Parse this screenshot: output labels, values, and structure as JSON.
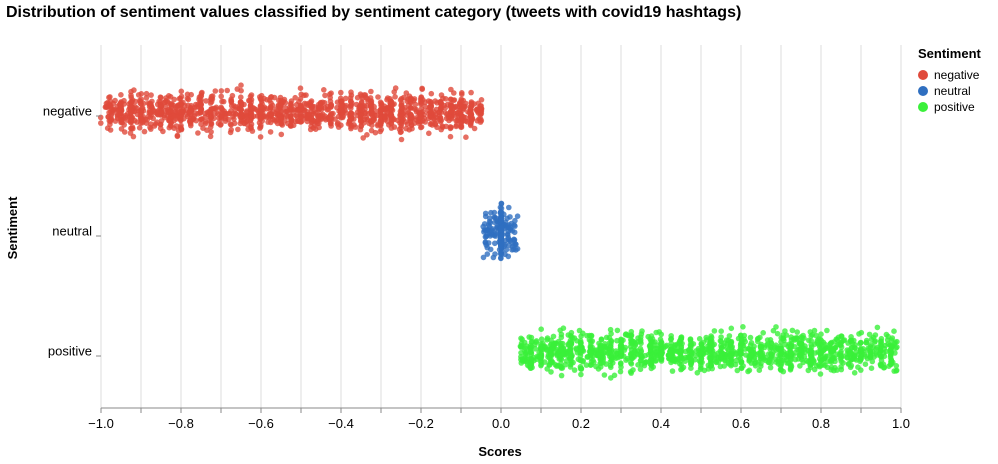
{
  "chart_data": {
    "type": "scatter",
    "title": "Distribution of sentiment values classified by sentiment category (tweets with covid19 hashtags)",
    "xlabel": "Scores",
    "ylabel": "Sentiment",
    "xlim": [
      -1.0,
      1.0
    ],
    "x_ticks": [
      "−1.0",
      "−0.8",
      "−0.6",
      "−0.4",
      "−0.2",
      "0.0",
      "0.2",
      "0.4",
      "0.6",
      "0.8",
      "1.0"
    ],
    "categories": [
      "negative",
      "neutral",
      "positive"
    ],
    "grid": "vertical",
    "legend": {
      "title": "Sentiment",
      "placement": "right"
    },
    "series": [
      {
        "name": "negative",
        "color": "#e04a3b",
        "x_range": [
          -0.99,
          -0.05
        ],
        "point_count": 1400
      },
      {
        "name": "neutral",
        "color": "#2f6fc0",
        "x_range": [
          -0.05,
          0.05
        ],
        "point_count": 260
      },
      {
        "name": "positive",
        "color": "#3af03a",
        "x_range": [
          0.05,
          0.99
        ],
        "point_count": 1400
      }
    ]
  }
}
